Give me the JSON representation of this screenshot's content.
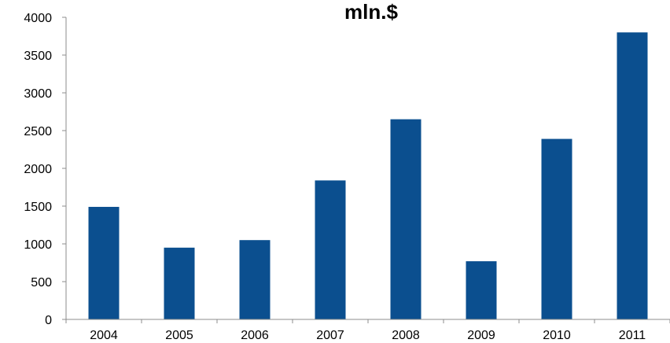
{
  "chart_data": {
    "type": "bar",
    "title": "mln.$",
    "categories": [
      "2004",
      "2005",
      "2006",
      "2007",
      "2008",
      "2009",
      "2010",
      "2011"
    ],
    "values": [
      1490,
      950,
      1050,
      1840,
      2650,
      770,
      2390,
      3800
    ],
    "ylim": [
      0,
      4000
    ],
    "yticks": [
      "0",
      "500",
      "1000",
      "1500",
      "2000",
      "2500",
      "3000",
      "3500",
      "4000"
    ],
    "xlabel": "",
    "ylabel": "",
    "grid": false,
    "legend": "none",
    "bar_color": "#0b4f8f"
  }
}
